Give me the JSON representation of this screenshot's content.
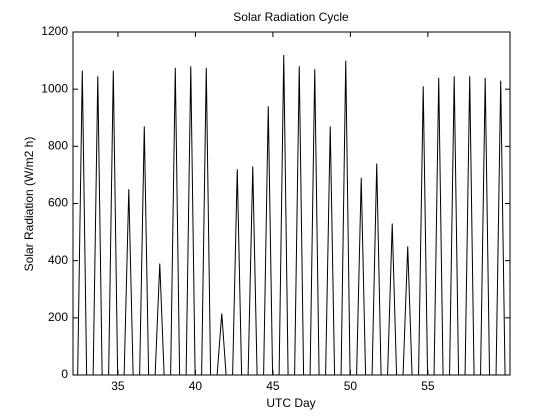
{
  "chart_data": {
    "type": "line",
    "title": "Solar Radiation Cycle",
    "xlabel": "UTC Day",
    "ylabel": "Solar Radiation (W/m2 h)",
    "xlim": [
      32.1,
      60.3
    ],
    "ylim": [
      0,
      1200
    ],
    "xticks": [
      35,
      40,
      45,
      50,
      55
    ],
    "yticks": [
      0,
      200,
      400,
      600,
      800,
      1000,
      1200
    ],
    "series": [
      {
        "color": "#000000",
        "x": [
          32.4,
          32.7,
          32.98,
          33.4,
          33.7,
          33.98,
          34.4,
          34.7,
          34.98,
          35.4,
          35.7,
          35.98,
          36.4,
          36.7,
          36.98,
          37.4,
          37.7,
          37.98,
          38.4,
          38.7,
          38.98,
          39.4,
          39.7,
          39.98,
          40.4,
          40.7,
          40.98,
          41.4,
          41.7,
          41.98,
          42.4,
          42.7,
          42.98,
          43.4,
          43.7,
          43.98,
          44.4,
          44.7,
          44.98,
          45.4,
          45.7,
          45.98,
          46.4,
          46.7,
          46.98,
          47.4,
          47.7,
          47.98,
          48.4,
          48.7,
          48.98,
          49.4,
          49.7,
          49.98,
          50.4,
          50.7,
          50.98,
          51.4,
          51.7,
          51.98,
          52.4,
          52.7,
          52.98,
          53.4,
          53.7,
          53.98,
          54.4,
          54.7,
          54.98,
          55.4,
          55.7,
          55.98,
          56.4,
          56.7,
          56.98,
          57.4,
          57.7,
          57.98,
          58.4,
          58.7,
          58.98,
          59.4,
          59.7,
          59.98
        ],
        "values": [
          0,
          1065,
          0,
          0,
          1045,
          0,
          0,
          1065,
          0,
          0,
          650,
          0,
          0,
          870,
          0,
          0,
          390,
          0,
          0,
          1075,
          0,
          0,
          1080,
          0,
          0,
          1075,
          0,
          0,
          215,
          0,
          0,
          720,
          0,
          0,
          730,
          0,
          0,
          940,
          0,
          0,
          1120,
          0,
          0,
          1080,
          0,
          0,
          1070,
          0,
          0,
          870,
          0,
          0,
          1100,
          0,
          0,
          690,
          0,
          0,
          740,
          0,
          0,
          530,
          0,
          0,
          450,
          0,
          0,
          1010,
          0,
          0,
          1040,
          0,
          0,
          1045,
          0,
          0,
          1045,
          0,
          0,
          1040,
          0,
          0,
          1030,
          0
        ]
      }
    ]
  }
}
